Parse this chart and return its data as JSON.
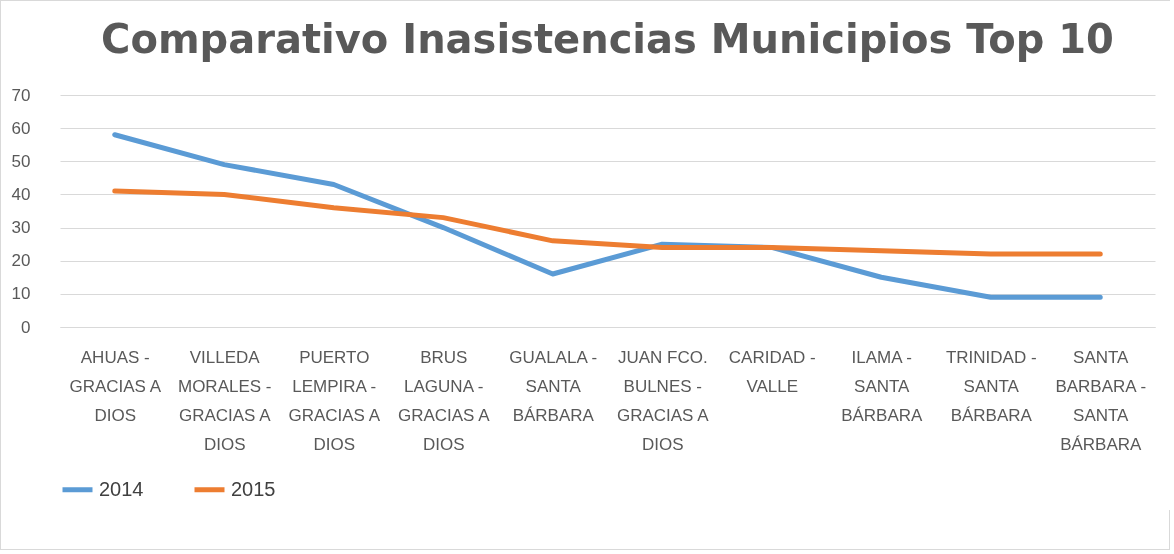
{
  "chart_data": {
    "type": "line",
    "title": "Comparativo Inasistencias Municipios Top 10",
    "categories": [
      "AHUAS - GRACIAS A DIOS",
      "VILLEDA MORALES - GRACIAS A DIOS",
      "PUERTO LEMPIRA - GRACIAS A DIOS",
      "BRUS LAGUNA - GRACIAS A DIOS",
      "GUALALA - SANTA BÁRBARA",
      "JUAN FCO. BULNES - GRACIAS A DIOS",
      "CARIDAD - VALLE",
      "ILAMA - SANTA BÁRBARA",
      "TRINIDAD - SANTA BÁRBARA",
      "SANTA BARBARA - SANTA BÁRBARA"
    ],
    "series": [
      {
        "name": "2014",
        "color": "#5b9bd5",
        "values": [
          58,
          49,
          43,
          30,
          16,
          25,
          24,
          15,
          9,
          9
        ]
      },
      {
        "name": "2015",
        "color": "#ed7d31",
        "values": [
          41,
          40,
          36,
          33,
          26,
          24,
          24,
          23,
          22,
          22
        ]
      }
    ],
    "ylim": [
      0,
      70
    ],
    "yticks": [
      0,
      10,
      20,
      30,
      40,
      50,
      60,
      70
    ],
    "grid": "y",
    "legend": "bottom",
    "marker": "none",
    "line_style": "solid"
  }
}
